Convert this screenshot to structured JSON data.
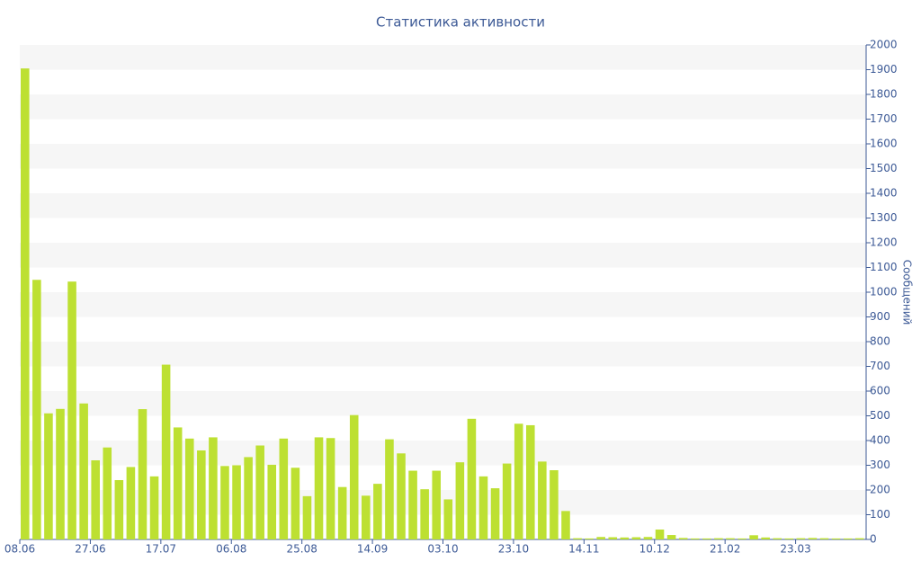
{
  "chart_data": {
    "type": "bar",
    "title": "Статистика активности",
    "y_label": "Сообщений",
    "categories": [
      "08.06",
      null,
      null,
      null,
      null,
      null,
      "27.06",
      null,
      null,
      null,
      null,
      null,
      "17.07",
      null,
      null,
      null,
      null,
      null,
      "06.08",
      null,
      null,
      null,
      null,
      null,
      "25.08",
      null,
      null,
      null,
      null,
      null,
      "14.09",
      null,
      null,
      null,
      null,
      null,
      "03.10",
      null,
      null,
      null,
      null,
      null,
      "23.10",
      null,
      null,
      null,
      null,
      null,
      "14.11",
      null,
      null,
      null,
      null,
      null,
      "10.12",
      null,
      null,
      null,
      null,
      null,
      "21.02",
      null,
      null,
      null,
      null,
      null,
      "23.03",
      null,
      null,
      null,
      null,
      null
    ],
    "values": [
      1905,
      1050,
      510,
      528,
      1043,
      550,
      320,
      372,
      240,
      293,
      527,
      255,
      707,
      453,
      408,
      360,
      413,
      297,
      300,
      333,
      380,
      302,
      408,
      290,
      175,
      413,
      410,
      212,
      503,
      177,
      225,
      405,
      348,
      278,
      203,
      278,
      162,
      312,
      488,
      255,
      207,
      307,
      468,
      462,
      315,
      280,
      115,
      5,
      4,
      10,
      9,
      8,
      9,
      10,
      40,
      18,
      6,
      4,
      4,
      5,
      5,
      4,
      17,
      8,
      5,
      4,
      5,
      6,
      5,
      4,
      4,
      5
    ],
    "color": "#bde032",
    "ylim": [
      0,
      2000
    ],
    "yticks": [
      0,
      100,
      200,
      300,
      400,
      500,
      600,
      700,
      800,
      900,
      1000,
      1100,
      1200,
      1300,
      1400,
      1500,
      1600,
      1700,
      1800,
      1900,
      2000
    ],
    "grid": true
  }
}
